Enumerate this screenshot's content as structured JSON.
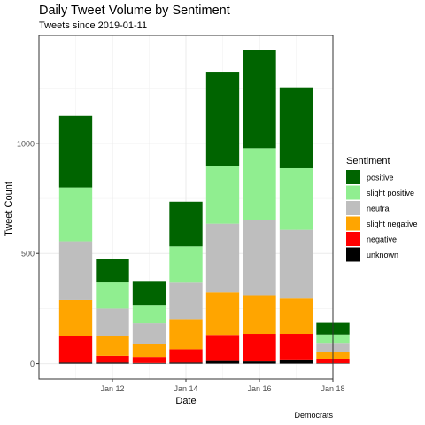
{
  "chart_data": {
    "type": "bar",
    "stacked": true,
    "title": "Daily Tweet Volume by Sentiment",
    "subtitle": "Tweets since 2019-01-11",
    "xlabel": "Date",
    "ylabel": "Tweet Count",
    "caption": "Democrats",
    "legend_title": "Sentiment",
    "legend_position": "right",
    "grid": true,
    "categories": [
      "2019-01-11",
      "2019-01-12",
      "2019-01-13",
      "2019-01-14",
      "2019-01-15",
      "2019-01-16",
      "2019-01-17",
      "2019-01-18"
    ],
    "x_ticks": [
      {
        "date": "2019-01-12",
        "label": "Jan 12"
      },
      {
        "date": "2019-01-14",
        "label": "Jan 14"
      },
      {
        "date": "2019-01-16",
        "label": "Jan 16"
      },
      {
        "date": "2019-01-18",
        "label": "Jan 18"
      }
    ],
    "xlim": [
      "2019-01-10",
      "2019-01-18"
    ],
    "y_ticks": [
      0,
      500,
      1000
    ],
    "ylim": [
      -70,
      1490
    ],
    "series": [
      {
        "name": "unknown",
        "color": "#000000",
        "values": [
          5,
          5,
          3,
          5,
          12,
          10,
          15,
          2
        ]
      },
      {
        "name": "negative",
        "color": "#ff0000",
        "values": [
          120,
          30,
          27,
          60,
          118,
          125,
          120,
          18
        ]
      },
      {
        "name": "slight negative",
        "color": "#ffa500",
        "values": [
          163,
          92,
          58,
          137,
          193,
          175,
          160,
          32
        ]
      },
      {
        "name": "neutral",
        "color": "#bebebe",
        "values": [
          267,
          123,
          95,
          165,
          312,
          340,
          312,
          42
        ]
      },
      {
        "name": "slight positive",
        "color": "#90ee90",
        "values": [
          245,
          118,
          80,
          165,
          260,
          328,
          280,
          38
        ]
      },
      {
        "name": "positive",
        "color": "#006400",
        "values": [
          325,
          107,
          112,
          203,
          430,
          445,
          367,
          53
        ]
      }
    ],
    "legend_order": [
      "positive",
      "slight positive",
      "neutral",
      "slight negative",
      "negative",
      "unknown"
    ]
  }
}
